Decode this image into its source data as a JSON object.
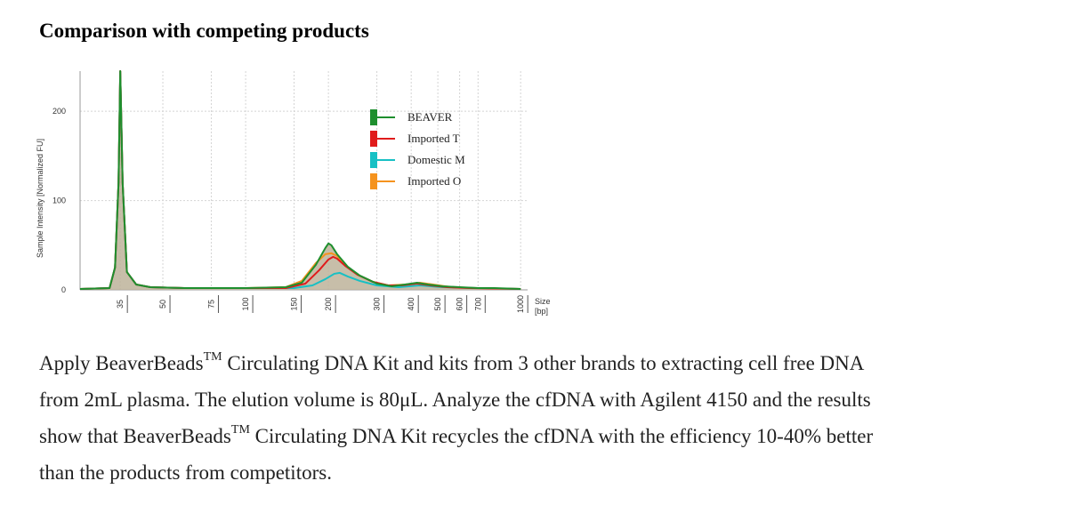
{
  "heading": "Comparison with competing products",
  "chart_data": {
    "type": "line",
    "title": "",
    "xlabel": "Size [bp]",
    "x_unit_label": "Size",
    "x_unit_suffix": "[bp]",
    "ylabel": "Sample Intensity [Normalized FU]",
    "x_scale": "log",
    "x_ticks": [
      35,
      50,
      75,
      100,
      150,
      200,
      300,
      400,
      500,
      600,
      700,
      1000
    ],
    "y_ticks": [
      0,
      100,
      200
    ],
    "ylim": [
      0,
      245
    ],
    "grid": true,
    "legend_position": "top-right",
    "series": [
      {
        "name": "BEAVER",
        "color": "#1e8f2e",
        "points": [
          [
            25,
            1
          ],
          [
            32,
            2
          ],
          [
            33.5,
            25
          ],
          [
            34.5,
            120
          ],
          [
            35,
            245
          ],
          [
            35.7,
            120
          ],
          [
            37,
            20
          ],
          [
            40,
            6
          ],
          [
            45,
            3
          ],
          [
            60,
            2
          ],
          [
            100,
            2
          ],
          [
            140,
            3
          ],
          [
            160,
            8
          ],
          [
            180,
            28
          ],
          [
            195,
            47
          ],
          [
            200,
            52
          ],
          [
            205,
            50
          ],
          [
            215,
            40
          ],
          [
            235,
            26
          ],
          [
            260,
            16
          ],
          [
            300,
            7
          ],
          [
            340,
            4
          ],
          [
            380,
            6
          ],
          [
            420,
            8
          ],
          [
            460,
            6
          ],
          [
            520,
            4
          ],
          [
            600,
            3
          ],
          [
            700,
            2
          ],
          [
            800,
            2
          ],
          [
            1000,
            1
          ]
        ]
      },
      {
        "name": "Imported T",
        "color": "#e01b1b",
        "points": [
          [
            25,
            1
          ],
          [
            32,
            2
          ],
          [
            33.5,
            25
          ],
          [
            34.5,
            120
          ],
          [
            35,
            245
          ],
          [
            35.7,
            120
          ],
          [
            37,
            20
          ],
          [
            40,
            6
          ],
          [
            45,
            3
          ],
          [
            60,
            2
          ],
          [
            100,
            2
          ],
          [
            140,
            2
          ],
          [
            165,
            7
          ],
          [
            185,
            22
          ],
          [
            200,
            34
          ],
          [
            208,
            37
          ],
          [
            215,
            35
          ],
          [
            230,
            27
          ],
          [
            255,
            17
          ],
          [
            290,
            9
          ],
          [
            330,
            5
          ],
          [
            370,
            5
          ],
          [
            420,
            7
          ],
          [
            470,
            5
          ],
          [
            540,
            3
          ],
          [
            650,
            2
          ],
          [
            1000,
            1
          ]
        ]
      },
      {
        "name": "Domestic M",
        "color": "#17c0c4",
        "points": [
          [
            25,
            1
          ],
          [
            32,
            2
          ],
          [
            33.5,
            25
          ],
          [
            34.5,
            120
          ],
          [
            35,
            245
          ],
          [
            35.7,
            120
          ],
          [
            37,
            20
          ],
          [
            40,
            6
          ],
          [
            45,
            3
          ],
          [
            60,
            2
          ],
          [
            100,
            2
          ],
          [
            150,
            2
          ],
          [
            175,
            5
          ],
          [
            195,
            12
          ],
          [
            210,
            18
          ],
          [
            220,
            19
          ],
          [
            235,
            15
          ],
          [
            260,
            10
          ],
          [
            300,
            5
          ],
          [
            360,
            3
          ],
          [
            430,
            5
          ],
          [
            520,
            3
          ],
          [
            700,
            2
          ],
          [
            1000,
            1
          ]
        ]
      },
      {
        "name": "Imported O",
        "color": "#f5931e",
        "points": [
          [
            25,
            1
          ],
          [
            32,
            2
          ],
          [
            33.5,
            25
          ],
          [
            34.5,
            120
          ],
          [
            35,
            245
          ],
          [
            35.7,
            120
          ],
          [
            37,
            20
          ],
          [
            40,
            6
          ],
          [
            45,
            3
          ],
          [
            60,
            2
          ],
          [
            100,
            2
          ],
          [
            140,
            3
          ],
          [
            160,
            10
          ],
          [
            180,
            30
          ],
          [
            195,
            40
          ],
          [
            205,
            41
          ],
          [
            215,
            38
          ],
          [
            230,
            28
          ],
          [
            255,
            17
          ],
          [
            290,
            9
          ],
          [
            330,
            5
          ],
          [
            380,
            6
          ],
          [
            430,
            8
          ],
          [
            480,
            6
          ],
          [
            560,
            3
          ],
          [
            700,
            2
          ],
          [
            1000,
            1
          ]
        ]
      }
    ]
  },
  "description": {
    "line1_a": "Apply BeaverBeads",
    "tm": "TM",
    "line1_b": " Circulating DNA Kit and kits from 3 other brands to extracting cell free DNA",
    "line2": "from 2mL plasma. The elution volume is 80μL. Analyze the cfDNA with Agilent 4150 and the results",
    "line3_a": "show that BeaverBeads",
    "line3_b": " Circulating DNA Kit recycles the cfDNA with the efficiency 10-40% better",
    "line4": "than the products from competitors."
  }
}
